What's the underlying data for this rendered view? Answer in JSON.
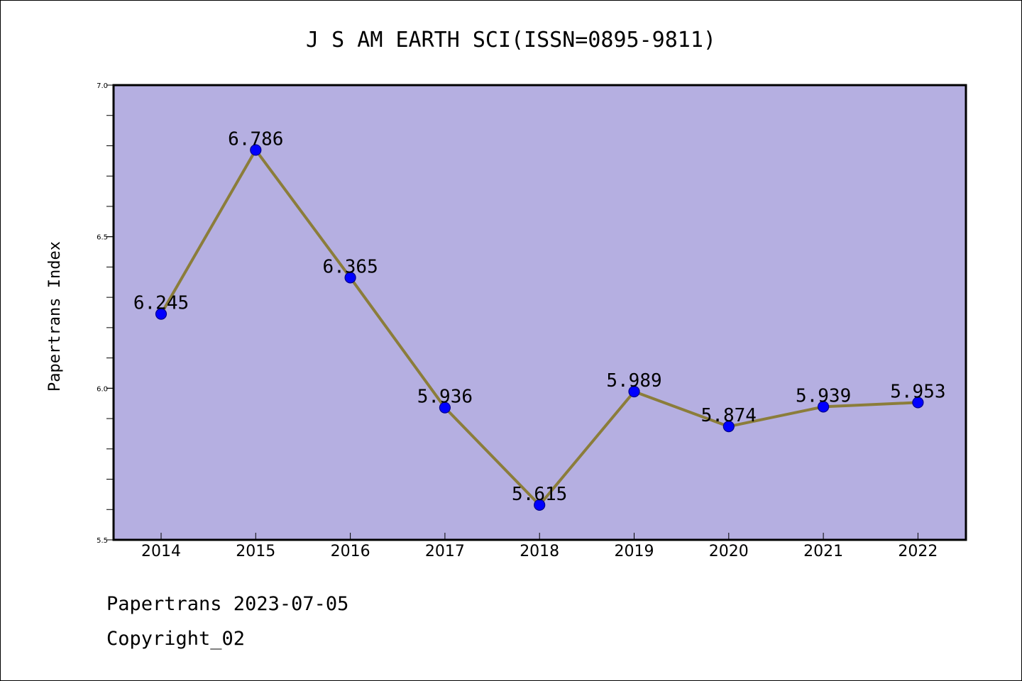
{
  "colors": {
    "plot_background": "#b5afe1",
    "line": "#8b7d3a",
    "marker_fill": "#0000ff",
    "marker_edge": "#00008b",
    "axis": "#000000",
    "page_background": "#ffffff"
  },
  "footer": {
    "line1": "Papertrans 2023-07-05",
    "line2": "Copyright_02"
  },
  "chart_data": {
    "type": "line",
    "title": "J S AM EARTH SCI(ISSN=0895-9811)",
    "xlabel": "",
    "ylabel": "Papertrans Index",
    "categories": [
      "2014",
      "2015",
      "2016",
      "2017",
      "2018",
      "2019",
      "2020",
      "2021",
      "2022"
    ],
    "series": [
      {
        "values": [
          6.245,
          6.786,
          6.365,
          5.936,
          5.615,
          5.989,
          5.874,
          5.939,
          5.953
        ],
        "labels": [
          "6.245",
          "6.786",
          "6.365",
          "5.936",
          "5.615",
          "5.989",
          "5.874",
          "5.939",
          "5.953"
        ]
      }
    ],
    "ylim": [
      5.5,
      7.0
    ],
    "yticks": [
      5.5,
      6.0,
      6.5,
      7.0
    ],
    "ytick_labels": [
      "5.5",
      "6.0",
      "6.5",
      "7.0"
    ],
    "y_minor_step": 0.1,
    "grid": false,
    "legend": "none"
  }
}
